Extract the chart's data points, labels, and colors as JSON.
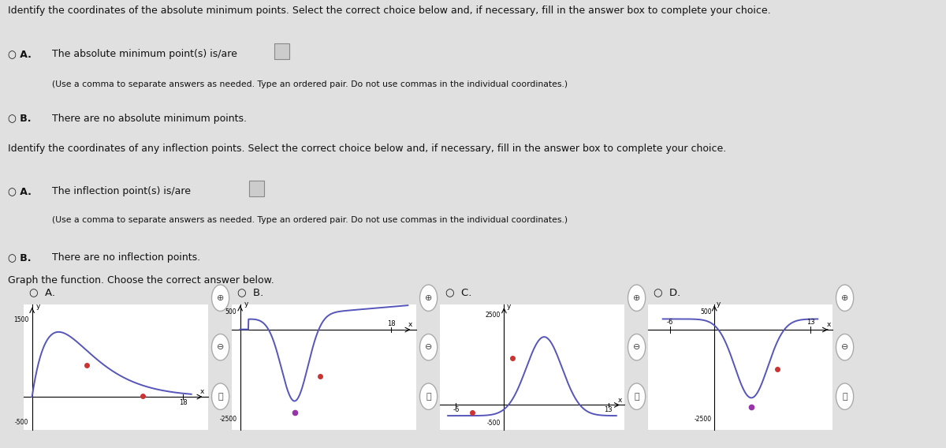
{
  "bg_color": "#e0e0e0",
  "text_color": "#111111",
  "title1": "Identify the coordinates of the absolute minimum points. Select the correct choice below and, if necessary, fill in the answer box to complete your choice.",
  "optA1_text": "The absolute minimum point(s) is/are",
  "optA1_sub": "(Use a comma to separate answers as needed. Type an ordered pair. Do not use commas in the individual coordinates.)",
  "optB1_text": "There are no absolute minimum points.",
  "title2": "Identify the coordinates of any inflection points. Select the correct choice below and, if necessary, fill in the answer box to complete your choice.",
  "optA2_text": "The inflection point(s) is/are",
  "optA2_sub": "(Use a comma to separate answers as needed. Type an ordered pair. Do not use commas in the individual coordinates.)",
  "optB2_text": "There are no inflection points.",
  "title3": "Graph the function. Choose the correct answer below.",
  "graph_labels": [
    "A.",
    "B.",
    "C.",
    "D."
  ],
  "curve_color": "#5555bb",
  "dot_color_red": "#cc3333",
  "dot_color_purple": "#9933aa"
}
